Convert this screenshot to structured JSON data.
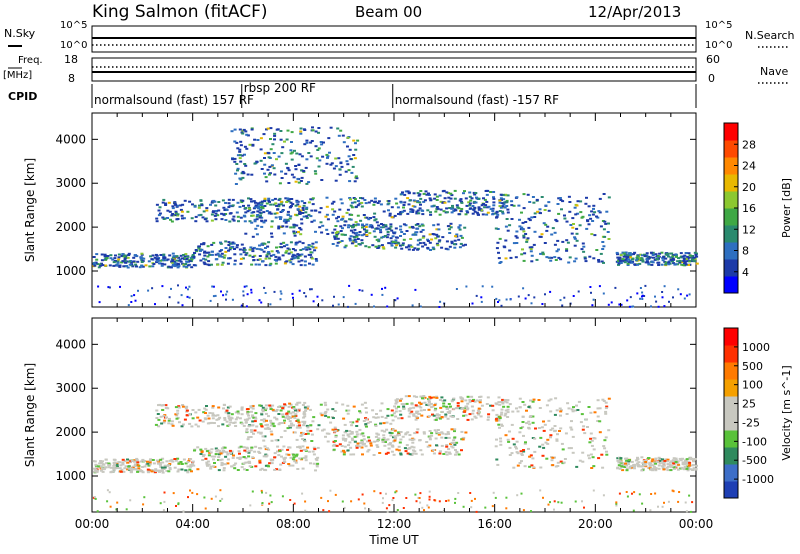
{
  "header": {
    "station": "King Salmon (fitACF)",
    "beam": "Beam 00",
    "date": "12/Apr/2013"
  },
  "strips": {
    "noise_left_label": "N.Sky",
    "noise_right_label": "N.Search",
    "noise_left_ticks": [
      "10^5",
      "10^0"
    ],
    "noise_right_ticks": [
      "10^5",
      "10^0"
    ],
    "freq_label": "Freq.",
    "freq_unit": "[MHz]",
    "freq_ticks": [
      "18",
      "8"
    ],
    "nave_label": "Nave",
    "nave_ticks": [
      "60",
      "0"
    ],
    "cpid_label": "CPID",
    "cpid_segments": [
      {
        "start": 0.0,
        "end": 5.95,
        "label": "normalsound (fast) 157 RF"
      },
      {
        "start": 5.95,
        "end": 11.95,
        "label": "rbsp 200 RF"
      },
      {
        "start": 11.95,
        "end": 24.0,
        "label": "normalsound (fast) -157 RF"
      }
    ]
  },
  "chart_data": [
    {
      "type": "heatmap",
      "title": "",
      "ylabel": "Slant Range [km]",
      "xlabel": "",
      "xlim": [
        0,
        24
      ],
      "ylim": [
        180,
        4600
      ],
      "yticks": [
        1000,
        2000,
        3000,
        4000
      ],
      "colorbar": {
        "label": "Power [dB]",
        "ticks": [
          "28",
          "24",
          "20",
          "16",
          "12",
          "8",
          "4"
        ],
        "colors": [
          "#0000ff",
          "#1c3aa8",
          "#2e6fc0",
          "#2a8a6e",
          "#3fa845",
          "#8cc830",
          "#e8b800",
          "#ff8800",
          "#ff4a00",
          "#ff0000"
        ]
      },
      "echo_bands": [
        {
          "t0": 0.0,
          "t1": 4.0,
          "r0": 1100,
          "r1": 1420
        },
        {
          "t0": 4.0,
          "t1": 9.0,
          "r0": 1150,
          "r1": 1700
        },
        {
          "t0": 2.5,
          "t1": 8.5,
          "r0": 2150,
          "r1": 2650
        },
        {
          "t0": 6.0,
          "t1": 12.0,
          "r0": 1800,
          "r1": 2700
        },
        {
          "t0": 9.5,
          "t1": 14.8,
          "r0": 1500,
          "r1": 2100
        },
        {
          "t0": 12.0,
          "t1": 16.5,
          "r0": 2300,
          "r1": 2850
        },
        {
          "t0": 16.0,
          "t1": 20.5,
          "r0": 1200,
          "r1": 2800
        },
        {
          "t0": 20.8,
          "t1": 24.0,
          "r0": 1150,
          "r1": 1450
        },
        {
          "t0": 5.5,
          "t1": 10.5,
          "r0": 3000,
          "r1": 4300
        }
      ]
    },
    {
      "type": "heatmap",
      "title": "",
      "ylabel": "Slant Range [km]",
      "xlabel": "Time UT",
      "xlim": [
        0,
        24
      ],
      "ylim": [
        180,
        4600
      ],
      "yticks": [
        1000,
        2000,
        3000,
        4000
      ],
      "xticks": [
        "00:00",
        "04:00",
        "08:00",
        "12:00",
        "16:00",
        "20:00",
        "00:00"
      ],
      "colorbar": {
        "label": "Velocity [m s^-1]",
        "ticks": [
          "1000",
          "500",
          "100",
          "25",
          "-25",
          "-100",
          "-500",
          "-1000"
        ],
        "colors": [
          "#1e3fb4",
          "#3d6ec8",
          "#2f8a5e",
          "#59c23a",
          "#c8c8c0",
          "#c8c8c0",
          "#f5a000",
          "#ff7a00",
          "#ff3000",
          "#ff0000"
        ]
      },
      "echo_bands": [
        {
          "t0": 0.0,
          "t1": 4.0,
          "r0": 1100,
          "r1": 1420
        },
        {
          "t0": 4.0,
          "t1": 9.0,
          "r0": 1150,
          "r1": 1700
        },
        {
          "t0": 2.5,
          "t1": 8.5,
          "r0": 2150,
          "r1": 2650
        },
        {
          "t0": 6.0,
          "t1": 12.0,
          "r0": 1800,
          "r1": 2700
        },
        {
          "t0": 9.5,
          "t1": 14.8,
          "r0": 1500,
          "r1": 2100
        },
        {
          "t0": 12.0,
          "t1": 16.5,
          "r0": 2300,
          "r1": 2850
        },
        {
          "t0": 16.0,
          "t1": 20.5,
          "r0": 1200,
          "r1": 2800
        },
        {
          "t0": 20.8,
          "t1": 24.0,
          "r0": 1150,
          "r1": 1450
        }
      ]
    }
  ]
}
